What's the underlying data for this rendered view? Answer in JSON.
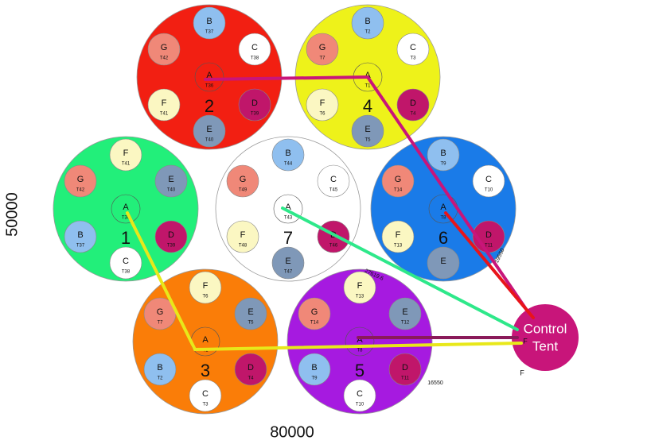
{
  "clusters": [
    {
      "number": "2",
      "color": "#f21f12",
      "hub": {
        "letter": "A",
        "tag": "T36"
      },
      "pods": [
        {
          "letter": "B",
          "tag": "T37"
        },
        {
          "letter": "C",
          "tag": "T38"
        },
        {
          "letter": "D",
          "tag": "T39"
        },
        {
          "letter": "E",
          "tag": "T40"
        },
        {
          "letter": "F",
          "tag": "T41"
        },
        {
          "letter": "G",
          "tag": "T42"
        }
      ]
    },
    {
      "number": "4",
      "color": "#eef21a",
      "hub": {
        "letter": "A",
        "tag": "T1"
      },
      "pods": [
        {
          "letter": "B",
          "tag": "T2"
        },
        {
          "letter": "C",
          "tag": "T3"
        },
        {
          "letter": "D",
          "tag": "T4"
        },
        {
          "letter": "E",
          "tag": "T5"
        },
        {
          "letter": "F",
          "tag": "T6"
        },
        {
          "letter": "G",
          "tag": "T7"
        }
      ]
    },
    {
      "number": "1",
      "color": "#22ef7a",
      "hub": {
        "letter": "A",
        "tag": "T36"
      },
      "pods": [
        {
          "letter": "F",
          "tag": "T41"
        },
        {
          "letter": "E",
          "tag": "T40"
        },
        {
          "letter": "D",
          "tag": "T39"
        },
        {
          "letter": "C",
          "tag": "T38"
        },
        {
          "letter": "B",
          "tag": "T37"
        },
        {
          "letter": "G",
          "tag": "T42"
        }
      ]
    },
    {
      "number": "7",
      "color": "#ffffff",
      "hub": {
        "letter": "A",
        "tag": "T43"
      },
      "pods": [
        {
          "letter": "B",
          "tag": "T44"
        },
        {
          "letter": "C",
          "tag": "T45"
        },
        {
          "letter": "D",
          "tag": "T46"
        },
        {
          "letter": "E",
          "tag": "T47"
        },
        {
          "letter": "F",
          "tag": "T48"
        },
        {
          "letter": "G",
          "tag": "T49"
        }
      ]
    },
    {
      "number": "6",
      "color": "#1a7be8",
      "hub": {
        "letter": "A",
        "tag": "T8"
      },
      "pods": [
        {
          "letter": "B",
          "tag": "T9"
        },
        {
          "letter": "C",
          "tag": "T10"
        },
        {
          "letter": "D",
          "tag": "T11"
        },
        {
          "letter": "E"
        },
        {
          "letter": "F",
          "tag": "T13"
        },
        {
          "letter": "G",
          "tag": "T14"
        }
      ]
    },
    {
      "number": "3",
      "color": "#fa7d08",
      "hub": {
        "letter": "A",
        "tag": "T1"
      },
      "pods": [
        {
          "letter": "F",
          "tag": "T6"
        },
        {
          "letter": "E",
          "tag": "T5"
        },
        {
          "letter": "D",
          "tag": "T4"
        },
        {
          "letter": "C",
          "tag": "T3"
        },
        {
          "letter": "B",
          "tag": "T2"
        },
        {
          "letter": "G",
          "tag": "T7"
        }
      ]
    },
    {
      "number": "5",
      "color": "#a61ae0",
      "hub": {
        "letter": "A",
        "tag": "T8"
      },
      "pods": [
        {
          "letter": "F",
          "tag": "T13"
        },
        {
          "letter": "E",
          "tag": "T12"
        },
        {
          "letter": "D",
          "tag": "T11"
        },
        {
          "letter": "C",
          "tag": "T10"
        },
        {
          "letter": "B",
          "tag": "T9"
        },
        {
          "letter": "G",
          "tag": "T14"
        }
      ]
    }
  ],
  "tent": {
    "lines": [
      "Control",
      "Tent"
    ],
    "color": "#c8157a"
  },
  "labels": {
    "y_axis": "50000",
    "x_axis": "80000",
    "distance_1": "27619.6",
    "distance_2": "19550",
    "distance_3": "16550",
    "tent_marker_1": "F",
    "tent_marker_2": "F"
  }
}
